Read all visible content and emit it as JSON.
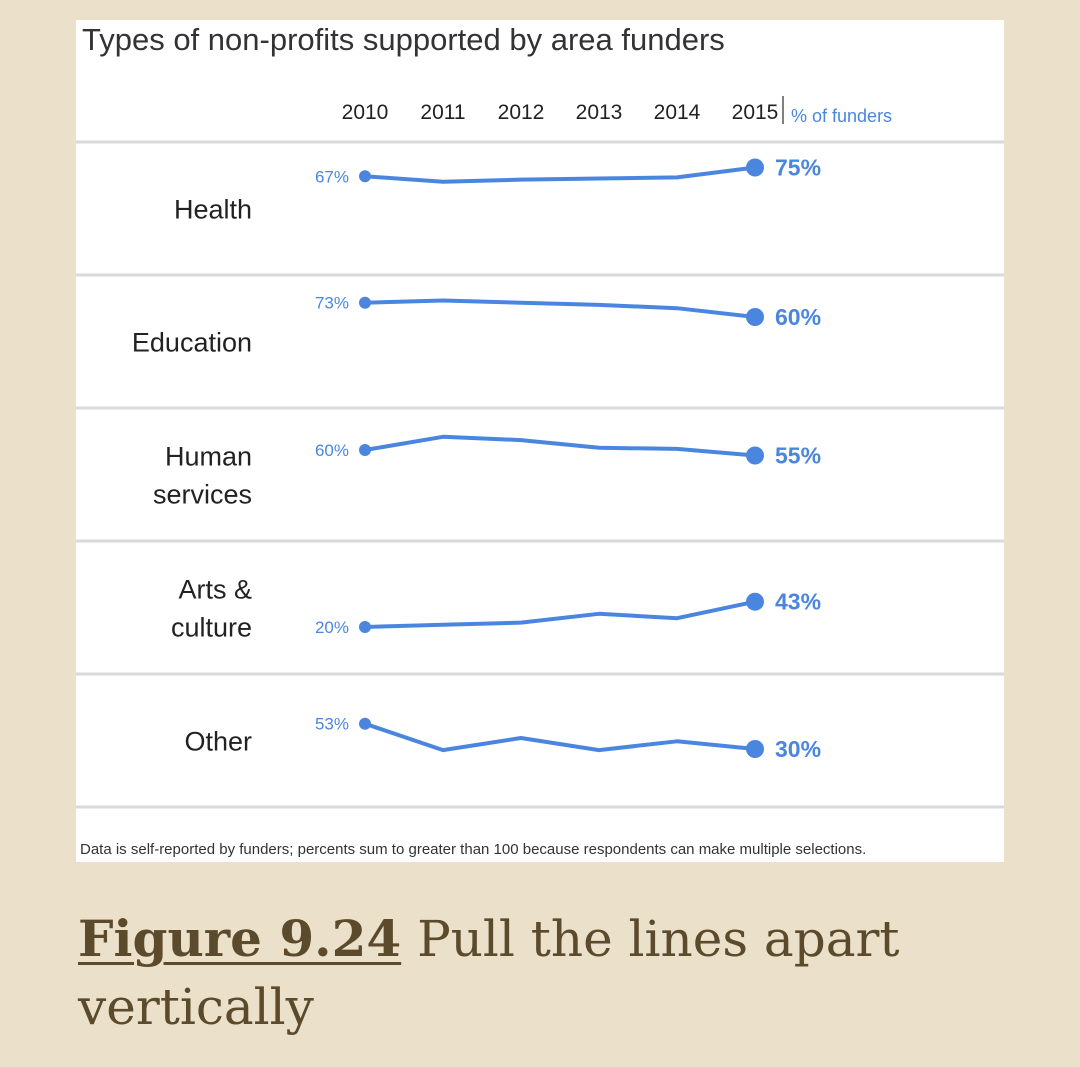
{
  "chart_data": {
    "type": "line",
    "title": "Types of non-profits supported by area funders",
    "unit_label": "% of funders",
    "years": [
      "2010",
      "2011",
      "2012",
      "2013",
      "2014",
      "2015"
    ],
    "series": [
      {
        "name": "Health",
        "label_lines": [
          "Health"
        ],
        "values": [
          67,
          62,
          64,
          65,
          66,
          75
        ],
        "start_label": "67%",
        "end_label": "75%"
      },
      {
        "name": "Education",
        "label_lines": [
          "Education"
        ],
        "values": [
          73,
          75,
          73,
          71,
          68,
          60
        ],
        "start_label": "73%",
        "end_label": "60%"
      },
      {
        "name": "Human services",
        "label_lines": [
          "Human",
          "services"
        ],
        "values": [
          60,
          72,
          69,
          62,
          61,
          55
        ],
        "start_label": "60%",
        "end_label": "55%"
      },
      {
        "name": "Arts & culture",
        "label_lines": [
          "Arts &",
          "culture"
        ],
        "values": [
          20,
          22,
          24,
          32,
          28,
          43
        ],
        "start_label": "20%",
        "end_label": "43%"
      },
      {
        "name": "Other",
        "label_lines": [
          "Other"
        ],
        "values": [
          53,
          29,
          40,
          29,
          37,
          30
        ],
        "start_label": "53%",
        "end_label": "30%"
      }
    ],
    "footnote": "Data is self-reported by funders; percents sum to greater than 100 because respondents can make multiple selections.",
    "line_color": "#4a86e0",
    "value_color": "#4a86e0"
  },
  "caption": {
    "figure_ref": "Figure 9.24",
    "text": "Pull the lines apart vertically"
  },
  "colors": {
    "background": "#ebe0c9",
    "caption_text": "#5b4a2c"
  }
}
